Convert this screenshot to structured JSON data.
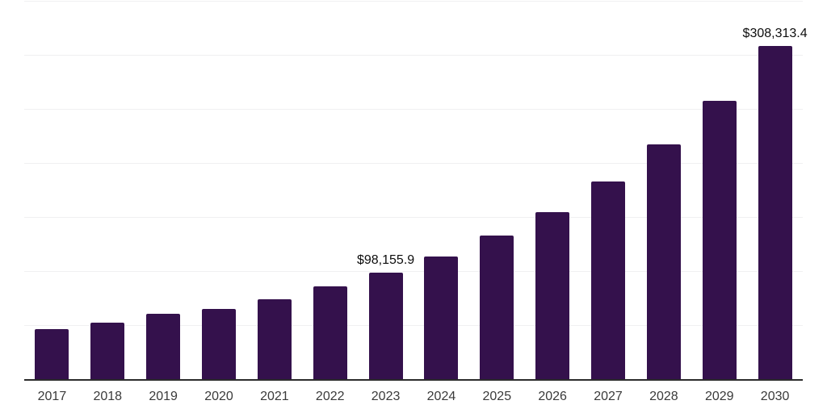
{
  "page": {
    "background_color": "#ffffff"
  },
  "chart_data": {
    "type": "bar",
    "title": "",
    "xlabel": "",
    "ylabel": "",
    "categories": [
      "2017",
      "2018",
      "2019",
      "2020",
      "2021",
      "2022",
      "2023",
      "2024",
      "2025",
      "2026",
      "2027",
      "2028",
      "2029",
      "2030"
    ],
    "values": [
      46300,
      52200,
      60400,
      65100,
      73700,
      85600,
      98155.9,
      113400,
      133100,
      154700,
      183100,
      217000,
      257700,
      308313.4
    ],
    "value_labels": {
      "2023": "$98,155.9",
      "2030": "$308,313.4"
    },
    "ylim": [
      0,
      350000
    ],
    "gridline_step": 50000,
    "grid": "horizontal-only",
    "legend": "none",
    "y_axis_ticks_visible": false,
    "bar_color": "#34114c",
    "gridline_color": "#f0f0f1",
    "axis_line_color": "#2b2b2b",
    "tick_label_color": "#3a3a3a",
    "value_label_color": "#0d0d0d"
  }
}
